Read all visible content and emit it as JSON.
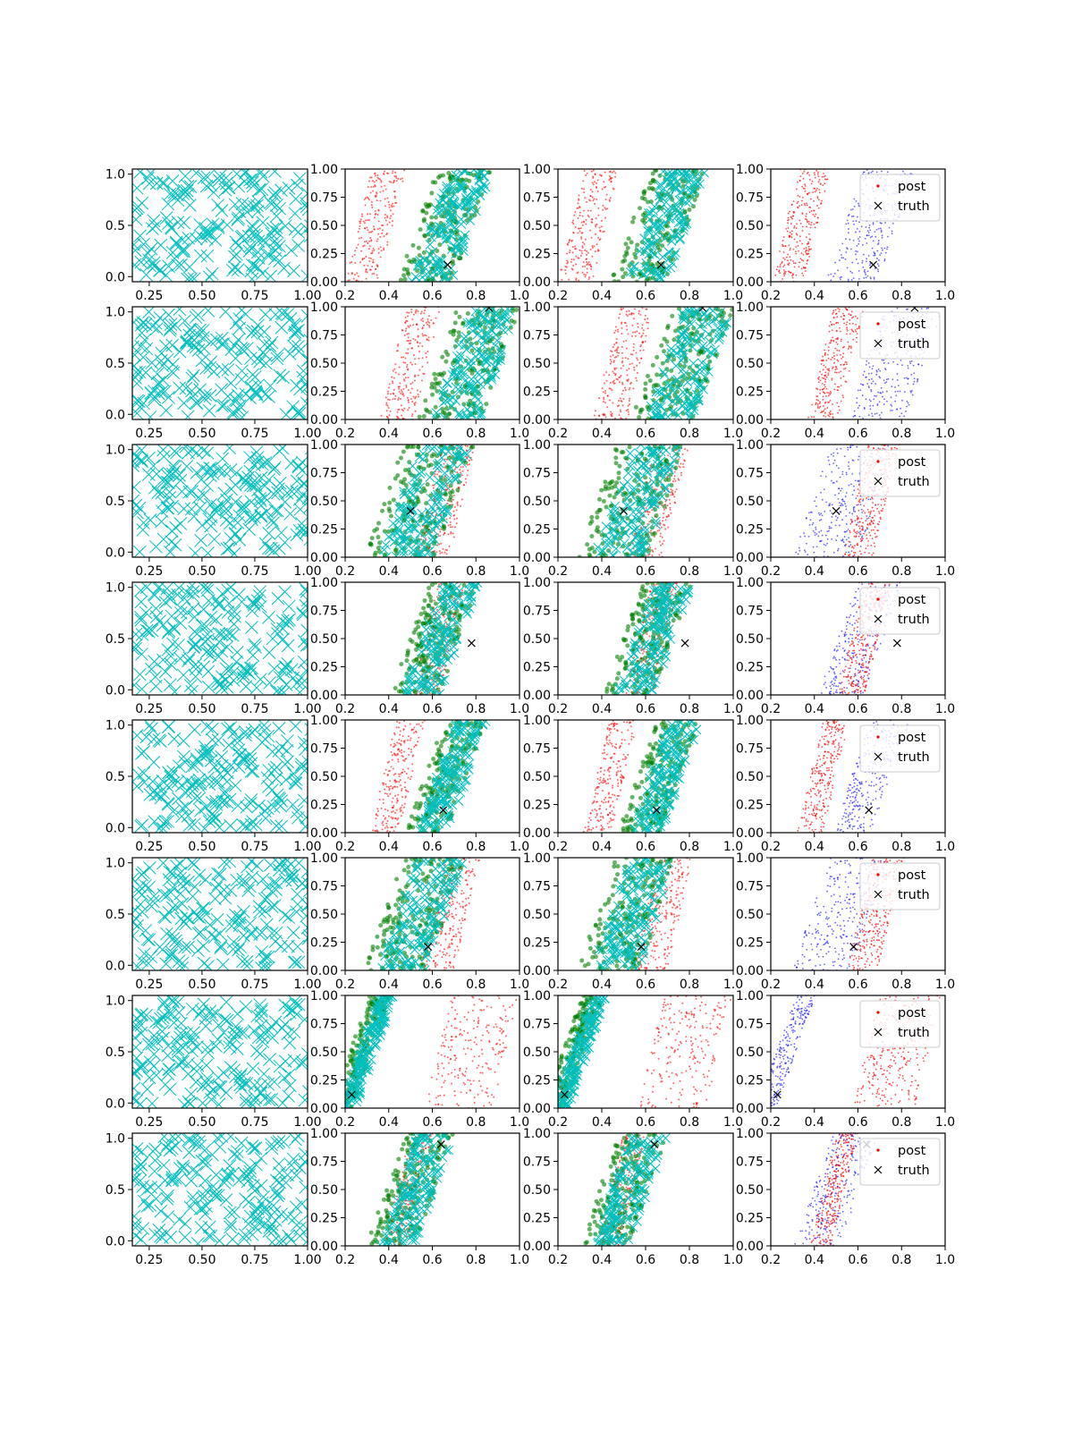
{
  "figure": {
    "rows": 8,
    "columns": 4,
    "colors": {
      "grid_marker": "#00bfbf",
      "gaussian": "#ff0000",
      "kde": "#008000",
      "samples": "#00bfbf",
      "prior": "#0000ff",
      "post": "#ff0000",
      "truth": "#000000"
    }
  },
  "legend": {
    "entries": [
      {
        "label": "post",
        "marker": "dot"
      },
      {
        "label": "truth",
        "marker": "x"
      }
    ],
    "placement": "upper-right"
  },
  "chart_data": [
    {
      "panel": "grid",
      "type": "scatter",
      "xlim": [
        0.17,
        1.0
      ],
      "ylim": [
        -0.05,
        1.05
      ],
      "xticks": [
        "0.25",
        "0.50",
        "0.75",
        "1.00"
      ],
      "yticks": [
        "0.0",
        "0.5",
        "1.0"
      ],
      "marker": "x",
      "count": 200
    },
    {
      "panel": "comparison",
      "type": "scatter",
      "xlim": [
        0.2,
        1.0
      ],
      "ylim": [
        0.0,
        1.0
      ],
      "xticks": [
        "0.2",
        "0.4",
        "0.6",
        "0.8",
        "1.0"
      ],
      "yticks": [
        "0.00",
        "0.25",
        "0.50",
        "0.75",
        "1.00"
      ]
    },
    {
      "panel": "posterior",
      "type": "scatter",
      "xlim": [
        0.2,
        1.0
      ],
      "ylim": [
        0.0,
        1.0
      ],
      "xticks": [
        "0.2",
        "0.4",
        "0.6",
        "0.8",
        "1.0"
      ],
      "yticks": [
        "0.00",
        "0.25",
        "0.50",
        "0.75",
        "1.00"
      ]
    },
    {
      "panel": "truth",
      "rows": [
        {
          "truth": [
            0.67,
            0.15
          ],
          "post_band": [
            0.34,
            0.06
          ],
          "other_band": [
            0.66,
            0.08
          ]
        },
        {
          "truth": [
            0.86,
            0.99
          ],
          "post_band": [
            0.5,
            0.06
          ],
          "other_band": [
            0.77,
            0.09
          ]
        },
        {
          "truth": [
            0.5,
            0.41
          ],
          "post_band": [
            0.66,
            0.06
          ],
          "other_band": [
            0.54,
            0.1
          ]
        },
        {
          "truth": [
            0.78,
            0.46
          ],
          "post_band": [
            0.63,
            0.05
          ],
          "other_band": [
            0.61,
            0.07
          ]
        },
        {
          "truth": [
            0.65,
            0.2
          ],
          "post_band": [
            0.44,
            0.05
          ],
          "other_band": [
            0.66,
            0.06
          ]
        },
        {
          "truth": [
            0.58,
            0.21
          ],
          "post_band": [
            0.68,
            0.06
          ],
          "other_band": [
            0.52,
            0.09
          ]
        },
        {
          "truth": [
            0.23,
            0.12
          ],
          "post_band": [
            0.78,
            0.12
          ],
          "other_band": [
            0.27,
            0.03
          ]
        },
        {
          "truth": [
            0.64,
            0.9
          ],
          "post_band": [
            0.49,
            0.04
          ],
          "other_band": [
            0.5,
            0.07
          ]
        }
      ]
    }
  ]
}
